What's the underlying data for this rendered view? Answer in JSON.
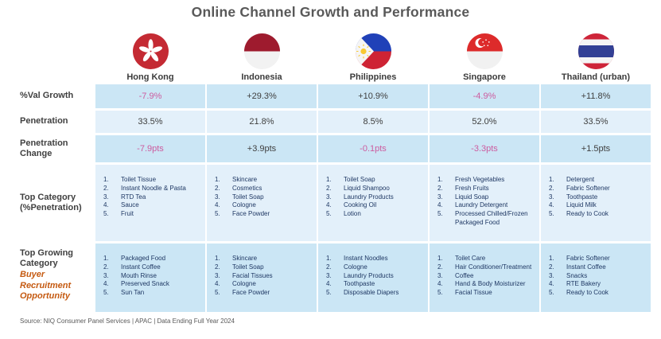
{
  "title": "Online Channel Growth and Performance",
  "source": "Source: NIQ Consumer Panel Services | APAC | Data Ending Full Year 2024",
  "colors": {
    "row_band_dark": "#CBE6F5",
    "row_band_light": "#E3F0FA",
    "negative_value_pink": "#CC5C9F",
    "value_text": "#3F3F3F",
    "list_text_navy": "#1F3864",
    "opportunity_orange": "#C55A11",
    "title_gray": "#595959"
  },
  "row_labels": {
    "val_growth": "%Val Growth",
    "penetration": "Penetration",
    "penetration_change": "Penetration Change",
    "top_category_line1": "Top Category",
    "top_category_line2": "(%Penetration)",
    "top_growing_line1": "Top Growing",
    "top_growing_line2": "Category",
    "opportunity": "Buyer Recruitment Opportunity"
  },
  "chart_data": {
    "type": "table",
    "title": "Online Channel Growth and Performance",
    "row_headers": [
      "%Val Growth",
      "Penetration",
      "Penetration Change",
      "Top Category (%Penetration)",
      "Top Growing Category — Buyer Recruitment Opportunity"
    ],
    "markets": [
      {
        "name": "Hong Kong",
        "flag": "hong-kong",
        "val_growth": "-7.9%",
        "penetration": "33.5%",
        "penetration_change": "-7.9pts",
        "top_categories": [
          "Toilet Tissue",
          "Instant Noodle & Pasta",
          "RTD Tea",
          "Sauce",
          "Fruit"
        ],
        "top_growing": [
          "Packaged Food",
          "Instant Coffee",
          "Mouth Rinse",
          "Preserved Snack",
          "Sun Tan"
        ]
      },
      {
        "name": "Indonesia",
        "flag": "indonesia",
        "val_growth": "+29.3%",
        "penetration": "21.8%",
        "penetration_change": "+3.9pts",
        "top_categories": [
          "Skincare",
          "Cosmetics",
          "Toilet Soap",
          "Cologne",
          "Face Powder"
        ],
        "top_growing": [
          "Skincare",
          "Toilet Soap",
          "Facial Tissues",
          "Cologne",
          "Face Powder"
        ]
      },
      {
        "name": "Philippines",
        "flag": "philippines",
        "val_growth": "+10.9%",
        "penetration": "8.5%",
        "penetration_change": "-0.1pts",
        "top_categories": [
          "Toilet Soap",
          "Liquid Shampoo",
          "Laundry Products",
          "Cooking Oil",
          "Lotion"
        ],
        "top_growing": [
          "Instant Noodles",
          "Cologne",
          "Laundry Products",
          "Toothpaste",
          "Disposable Diapers"
        ]
      },
      {
        "name": "Singapore",
        "flag": "singapore",
        "val_growth": "-4.9%",
        "penetration": "52.0%",
        "penetration_change": "-3.3pts",
        "top_categories": [
          "Fresh Vegetables",
          "Fresh Fruits",
          "Liquid Soap",
          "Laundry Detergent",
          "Processed Chilled/Frozen Packaged Food"
        ],
        "top_growing": [
          "Toilet Care",
          "Hair Conditioner/Treatment",
          "Coffee",
          "Hand & Body Moisturizer",
          "Facial Tissue"
        ]
      },
      {
        "name": "Thailand (urban)",
        "flag": "thailand",
        "val_growth": "+11.8%",
        "penetration": "33.5%",
        "penetration_change": "+1.5pts",
        "top_categories": [
          "Detergent",
          "Fabric Softener",
          "Toothpaste",
          "Liquid Milk",
          "Ready to Cook"
        ],
        "top_growing": [
          "Fabric Softener",
          "Instant Coffee",
          "Snacks",
          "RTE Bakery",
          "Ready to Cook"
        ]
      }
    ]
  }
}
